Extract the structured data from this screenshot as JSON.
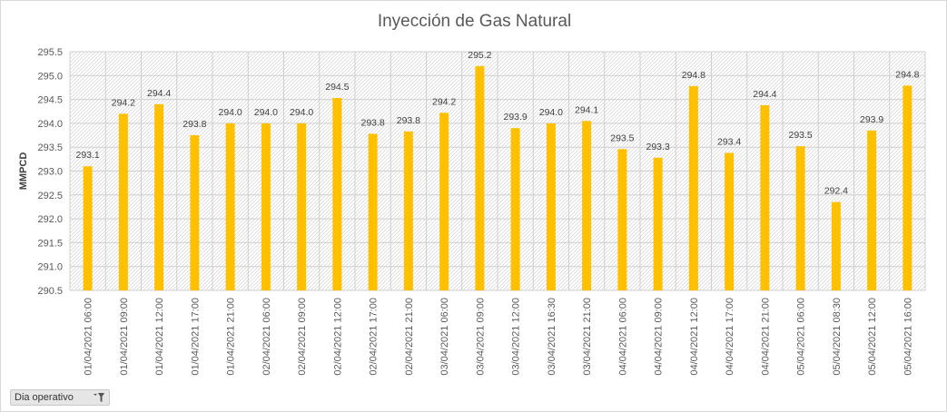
{
  "chart_data": {
    "type": "bar",
    "title": "Inyección de Gas Natural",
    "ylabel": "MMPCD",
    "xlabel": "",
    "ylim": [
      290.5,
      295.5
    ],
    "yticks": [
      "290.5",
      "291.0",
      "291.5",
      "292.0",
      "292.5",
      "293.0",
      "293.5",
      "294.0",
      "294.5",
      "295.0",
      "295.5"
    ],
    "ytick_values": [
      290.5,
      291.0,
      291.5,
      292.0,
      292.5,
      293.0,
      293.5,
      294.0,
      294.5,
      295.0,
      295.5
    ],
    "categories": [
      "01/04/2021 06:00",
      "01/04/2021 09:00",
      "01/04/2021 12:00",
      "01/04/2021 17:00",
      "01/04/2021 21:00",
      "02/04/2021 06:00",
      "02/04/2021 09:00",
      "02/04/2021 12:00",
      "02/04/2021 17:00",
      "02/04/2021 21:00",
      "03/04/2021 06:00",
      "03/04/2021 09:00",
      "03/04/2021 12:00",
      "03/04/2021 16:30",
      "03/04/2021 21:00",
      "04/04/2021 06:00",
      "04/04/2021 09:00",
      "04/04/2021 12:00",
      "04/04/2021 17:00",
      "04/04/2021 21:00",
      "05/04/2021 06:00",
      "05/04/2021 08:30",
      "05/04/2021 12:00",
      "05/04/2021 16:00"
    ],
    "values": [
      293.1,
      294.2,
      294.4,
      293.75,
      294.0,
      294.0,
      294.0,
      294.53,
      293.78,
      293.83,
      294.22,
      295.2,
      293.9,
      294.0,
      294.05,
      293.46,
      293.28,
      294.78,
      293.38,
      294.38,
      293.52,
      292.35,
      293.85,
      294.79
    ],
    "data_labels": [
      "293.1",
      "294.2",
      "294.4",
      "293.8",
      "294.0",
      "294.0",
      "294.0",
      "294.5",
      "293.8",
      "293.8",
      "294.2",
      "295.2",
      "293.9",
      "294.0",
      "294.1",
      "293.5",
      "293.3",
      "294.8",
      "293.4",
      "294.4",
      "293.5",
      "292.4",
      "293.9",
      "294.8"
    ],
    "bar_color": "#ffc000",
    "grid": true
  },
  "filter": {
    "label": "Dia operativo"
  }
}
